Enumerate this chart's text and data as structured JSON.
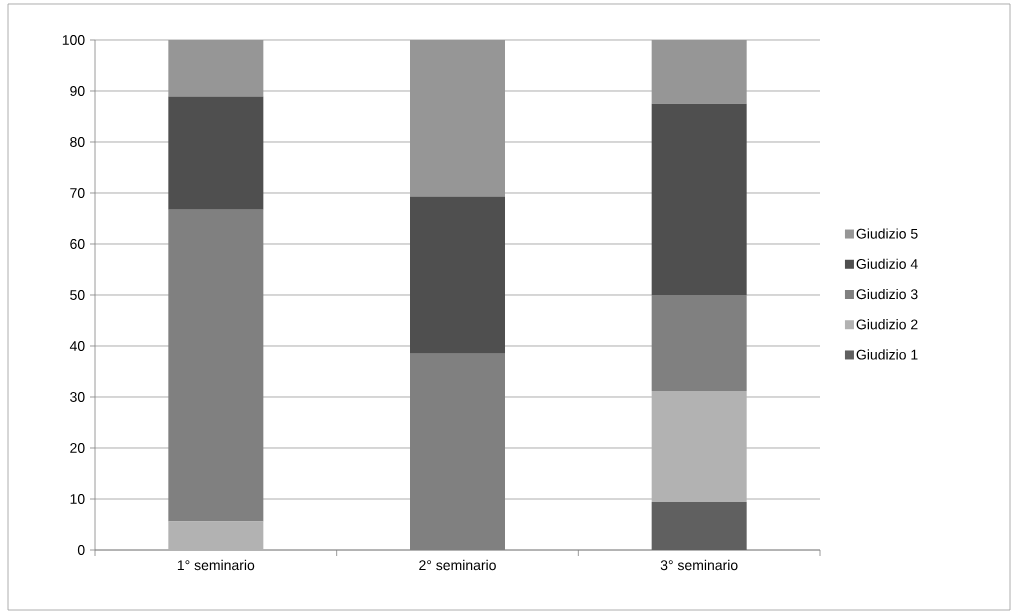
{
  "chart_data": {
    "type": "bar",
    "stacked": true,
    "categories": [
      "1° seminario",
      "2° seminario",
      "3° seminario"
    ],
    "series": [
      {
        "name": "Giudizio 1",
        "color": "#606060",
        "values": [
          0,
          0,
          9.4
        ]
      },
      {
        "name": "Giudizio 2",
        "color": "#b2b2b2",
        "values": [
          5.6,
          0,
          21.8
        ]
      },
      {
        "name": "Giudizio 3",
        "color": "#808080",
        "values": [
          61.1,
          38.5,
          18.8
        ]
      },
      {
        "name": "Giudizio 4",
        "color": "#4f4f4f",
        "values": [
          22.2,
          30.8,
          37.5
        ]
      },
      {
        "name": "Giudizio 5",
        "color": "#969696",
        "values": [
          11.1,
          30.7,
          12.5
        ]
      }
    ],
    "ylim": [
      0,
      100
    ],
    "yticks": [
      0,
      10,
      20,
      30,
      40,
      50,
      60,
      70,
      80,
      90,
      100
    ],
    "grid": "y",
    "legend": "right"
  }
}
